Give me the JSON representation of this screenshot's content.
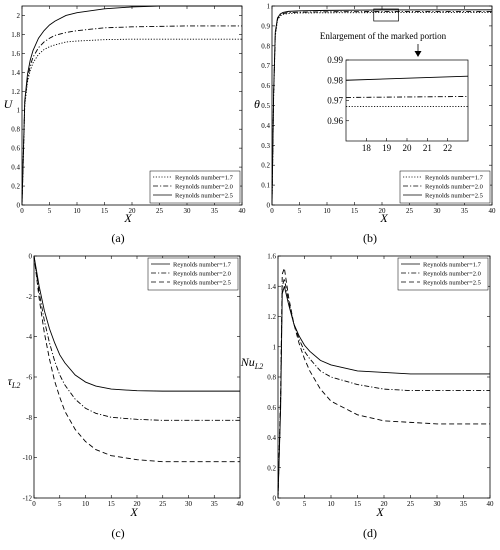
{
  "chart_data": [
    {
      "type": "line",
      "panel": "a",
      "caption": "(a)",
      "xlabel": "X",
      "ylabel": "U",
      "xlim": [
        0,
        40
      ],
      "ylim": [
        0,
        2.1
      ],
      "xticks": [
        0,
        5,
        10,
        15,
        20,
        25,
        30,
        35,
        40
      ],
      "yticks": [
        0,
        0.2,
        0.4,
        0.6,
        0.8,
        1,
        1.2,
        1.4,
        1.6,
        1.8,
        2
      ],
      "ytick_labels": [
        "0",
        "0.2",
        "0.4",
        "0.6",
        "0.8",
        "1",
        "1.2",
        "1.4",
        "1.6",
        "1.8",
        "2"
      ],
      "legend_position": "bottom-right",
      "series": [
        {
          "name": "Reynolds number=1.7",
          "style": "dotted",
          "x": [
            0,
            0.5,
            1,
            1.5,
            2,
            3,
            4,
            5,
            6,
            8,
            10,
            15,
            20,
            30,
            40
          ],
          "y": [
            0,
            1.05,
            1.3,
            1.42,
            1.5,
            1.59,
            1.64,
            1.67,
            1.69,
            1.72,
            1.73,
            1.745,
            1.75,
            1.75,
            1.75
          ]
        },
        {
          "name": "Reynolds number=2.0",
          "style": "dashdot",
          "x": [
            0,
            0.5,
            1,
            1.5,
            2,
            3,
            4,
            5,
            6,
            8,
            10,
            15,
            20,
            30,
            40
          ],
          "y": [
            0,
            1.08,
            1.33,
            1.47,
            1.56,
            1.66,
            1.72,
            1.76,
            1.79,
            1.82,
            1.84,
            1.87,
            1.88,
            1.89,
            1.89
          ]
        },
        {
          "name": "Reynolds number=2.5",
          "style": "solid",
          "x": [
            0,
            0.5,
            1,
            1.5,
            2,
            3,
            4,
            5,
            6,
            8,
            10,
            15,
            20,
            25,
            30,
            40
          ],
          "y": [
            0,
            1.1,
            1.38,
            1.53,
            1.63,
            1.76,
            1.84,
            1.9,
            1.94,
            2.0,
            2.03,
            2.07,
            2.09,
            2.1,
            2.1,
            2.1
          ]
        }
      ]
    },
    {
      "type": "line",
      "panel": "b",
      "caption": "(b)",
      "xlabel": "X",
      "ylabel": "θ",
      "xlim": [
        0,
        40
      ],
      "ylim": [
        0,
        1
      ],
      "xticks": [
        0,
        5,
        10,
        15,
        20,
        25,
        30,
        35,
        40
      ],
      "yticks": [
        0,
        0.1,
        0.2,
        0.3,
        0.4,
        0.5,
        0.6,
        0.7,
        0.8,
        0.9,
        1
      ],
      "ytick_labels": [
        "0",
        "0.1",
        "0.2",
        "0.3",
        "0.4",
        "0.5",
        "0.6",
        "0.7",
        "0.8",
        "0.9",
        "1"
      ],
      "legend_position": "bottom-right",
      "annotation": "Enlargement of the marked portion",
      "series": [
        {
          "name": "Reynolds number=1.7",
          "style": "dotted",
          "x": [
            0,
            0.3,
            0.6,
            1,
            1.5,
            2,
            3,
            5,
            10,
            20,
            40
          ],
          "y": [
            0,
            0.55,
            0.85,
            0.93,
            0.95,
            0.958,
            0.962,
            0.965,
            0.966,
            0.967,
            0.967
          ]
        },
        {
          "name": "Reynolds number=2.0",
          "style": "dashdot",
          "x": [
            0,
            0.3,
            0.6,
            1,
            1.5,
            2,
            3,
            5,
            10,
            20,
            40
          ],
          "y": [
            0,
            0.56,
            0.86,
            0.935,
            0.955,
            0.962,
            0.967,
            0.969,
            0.971,
            0.972,
            0.972
          ]
        },
        {
          "name": "Reynolds number=2.5",
          "style": "solid",
          "x": [
            0,
            0.3,
            0.6,
            1,
            1.5,
            2,
            3,
            5,
            10,
            20,
            40
          ],
          "y": [
            0,
            0.57,
            0.87,
            0.94,
            0.96,
            0.968,
            0.973,
            0.976,
            0.978,
            0.98,
            0.981
          ]
        }
      ],
      "inset": {
        "xlim": [
          17,
          23
        ],
        "ylim": [
          0.95,
          0.99
        ],
        "xticks": [
          17,
          18,
          19,
          20,
          21,
          22
        ],
        "xtick_labels": [
          "18",
          "19",
          "20",
          "21",
          "22"
        ],
        "xtick_values": [
          18,
          19,
          20,
          21,
          22
        ],
        "yticks": [
          0.96,
          0.97,
          0.98,
          0.99
        ],
        "ytick_labels": [
          "0.96",
          "0.97",
          "0.98",
          "0.99"
        ],
        "series": [
          {
            "style": "solid",
            "x": [
              17,
              23
            ],
            "y": [
              0.98,
              0.982
            ]
          },
          {
            "style": "dashdot",
            "x": [
              17,
              23
            ],
            "y": [
              0.9715,
              0.972
            ]
          },
          {
            "style": "dotted",
            "x": [
              17,
              23
            ],
            "y": [
              0.967,
              0.967
            ]
          }
        ]
      }
    },
    {
      "type": "line",
      "panel": "c",
      "caption": "(c)",
      "xlabel": "X",
      "ylabel": "τL2",
      "ylabel_main": "τ",
      "ylabel_sub": "L2",
      "xlim": [
        0,
        40
      ],
      "ylim": [
        -12,
        0
      ],
      "xticks": [
        0,
        5,
        10,
        15,
        20,
        25,
        30,
        35,
        40
      ],
      "yticks": [
        0,
        -2,
        -4,
        -6,
        -8,
        -10,
        -12
      ],
      "ytick_labels": [
        "0",
        "-2",
        "-4",
        "-6",
        "-8",
        "-10",
        "-12"
      ],
      "legend_position": "top-right",
      "series": [
        {
          "name": "Reynolds number=1.7",
          "style": "solid",
          "x": [
            0,
            1,
            2,
            3,
            4,
            5,
            6,
            8,
            10,
            12,
            15,
            20,
            25,
            30,
            40
          ],
          "y": [
            0,
            -1.5,
            -2.7,
            -3.6,
            -4.3,
            -4.9,
            -5.3,
            -5.9,
            -6.25,
            -6.45,
            -6.6,
            -6.68,
            -6.7,
            -6.7,
            -6.7
          ]
        },
        {
          "name": "Reynolds number=2.0",
          "style": "dashdot",
          "x": [
            0,
            1,
            2,
            3,
            4,
            5,
            6,
            8,
            10,
            12,
            15,
            20,
            25,
            30,
            40
          ],
          "y": [
            0,
            -1.8,
            -3.2,
            -4.3,
            -5.2,
            -5.9,
            -6.4,
            -7.1,
            -7.55,
            -7.8,
            -8.0,
            -8.1,
            -8.15,
            -8.15,
            -8.15
          ]
        },
        {
          "name": "Reynolds number=2.5",
          "style": "dashed",
          "x": [
            0,
            1,
            2,
            3,
            4,
            5,
            6,
            8,
            10,
            12,
            15,
            20,
            25,
            30,
            40
          ],
          "y": [
            0,
            -2.1,
            -3.8,
            -5.1,
            -6.2,
            -7.0,
            -7.7,
            -8.6,
            -9.2,
            -9.6,
            -9.9,
            -10.1,
            -10.2,
            -10.2,
            -10.2
          ]
        }
      ]
    },
    {
      "type": "line",
      "panel": "d",
      "caption": "(d)",
      "xlabel": "X",
      "ylabel": "NuL2",
      "ylabel_main": "Nu",
      "ylabel_sub": "L2",
      "xlim": [
        0,
        40
      ],
      "ylim": [
        0,
        1.6
      ],
      "xticks": [
        0,
        5,
        10,
        15,
        20,
        25,
        30,
        35,
        40
      ],
      "yticks": [
        0,
        0.2,
        0.4,
        0.6,
        0.8,
        1,
        1.2,
        1.4,
        1.6
      ],
      "ytick_labels": [
        "0",
        "0.2",
        "0.4",
        "0.6",
        "0.8",
        "1",
        "1.2",
        "1.4",
        "1.6"
      ],
      "legend_position": "top-right",
      "series": [
        {
          "name": "Reynolds number=1.7",
          "style": "solid",
          "x": [
            0,
            0.5,
            0.8,
            1.2,
            2,
            3,
            4,
            5,
            6,
            8,
            10,
            15,
            20,
            25,
            30,
            40
          ],
          "y": [
            0,
            0.6,
            1.35,
            1.4,
            1.28,
            1.15,
            1.07,
            1.01,
            0.97,
            0.91,
            0.88,
            0.84,
            0.83,
            0.82,
            0.82,
            0.82
          ]
        },
        {
          "name": "Reynolds number=2.0",
          "style": "dashdot",
          "x": [
            0,
            0.5,
            0.8,
            1.2,
            2,
            3,
            4,
            5,
            6,
            8,
            10,
            15,
            20,
            25,
            30,
            40
          ],
          "y": [
            0,
            0.65,
            1.4,
            1.45,
            1.3,
            1.15,
            1.05,
            0.97,
            0.92,
            0.84,
            0.8,
            0.75,
            0.72,
            0.71,
            0.71,
            0.71
          ]
        },
        {
          "name": "Reynolds number=2.5",
          "style": "dashed",
          "x": [
            0,
            0.5,
            0.8,
            1.2,
            2,
            3,
            4,
            5,
            6,
            8,
            10,
            15,
            20,
            25,
            30,
            40
          ],
          "y": [
            0,
            0.7,
            1.48,
            1.52,
            1.33,
            1.15,
            1.02,
            0.92,
            0.84,
            0.72,
            0.64,
            0.55,
            0.51,
            0.5,
            0.49,
            0.49
          ]
        }
      ]
    }
  ]
}
